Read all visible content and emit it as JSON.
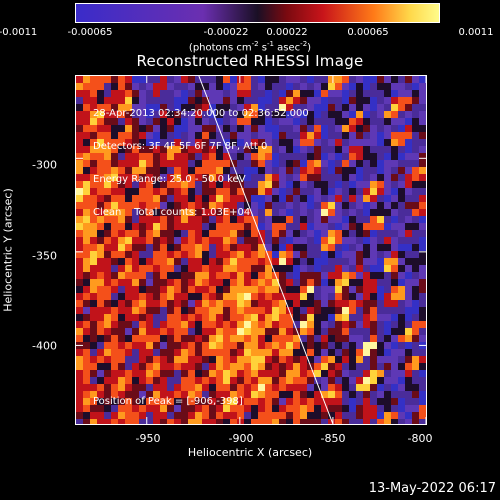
{
  "colorbar": {
    "ticks": [
      "-0.0011",
      "-0.00065",
      "-0.00022",
      "0.00022",
      "0.00065",
      "0.0011"
    ],
    "units": "(photons cm-2 s-1 asec-2)"
  },
  "title": "Reconstructed RHESSI Image",
  "info_lines": [
    "28-Apr-2013 02:34:20.000 to 02:36:52.000",
    "Detectors: 3F 4F 5F 6F 7F 8F, Att 0",
    "Energy Range: 25.0 - 50.0 keV",
    "Clean    Total counts: 1.03E+04"
  ],
  "peak_text": "Position of Peak = [-906,-398]",
  "footer": "13-May-2022 06:17",
  "chart_data": {
    "type": "heatmap",
    "title": "Reconstructed RHESSI Image",
    "xlabel": "Heliocentric X (arcsec)",
    "ylabel": "Heliocentric Y (arcsec)",
    "xlim": [
      -988,
      -800
    ],
    "ylim": [
      -442,
      -256
    ],
    "x_ticks": [
      -950,
      -900,
      -850,
      -800
    ],
    "x_tick_labels": [
      "-950",
      "-900",
      "-850",
      "-800"
    ],
    "y_ticks": [
      -300,
      -350,
      -400
    ],
    "y_tick_labels": [
      "-300",
      "-350",
      "-400"
    ],
    "colorbar_range": [
      -0.0011,
      0.0011
    ],
    "peak": [
      -906,
      -398
    ],
    "limb_line": [
      [
        -922,
        -256
      ],
      [
        -850,
        -442
      ]
    ],
    "colors": {
      "negative": "#3a2cc9",
      "purple": "#5a2fa8",
      "zero": "#1a0f25",
      "red": "#c8141a",
      "orange": "#ff7a18",
      "positive": "#fffb8a"
    }
  }
}
